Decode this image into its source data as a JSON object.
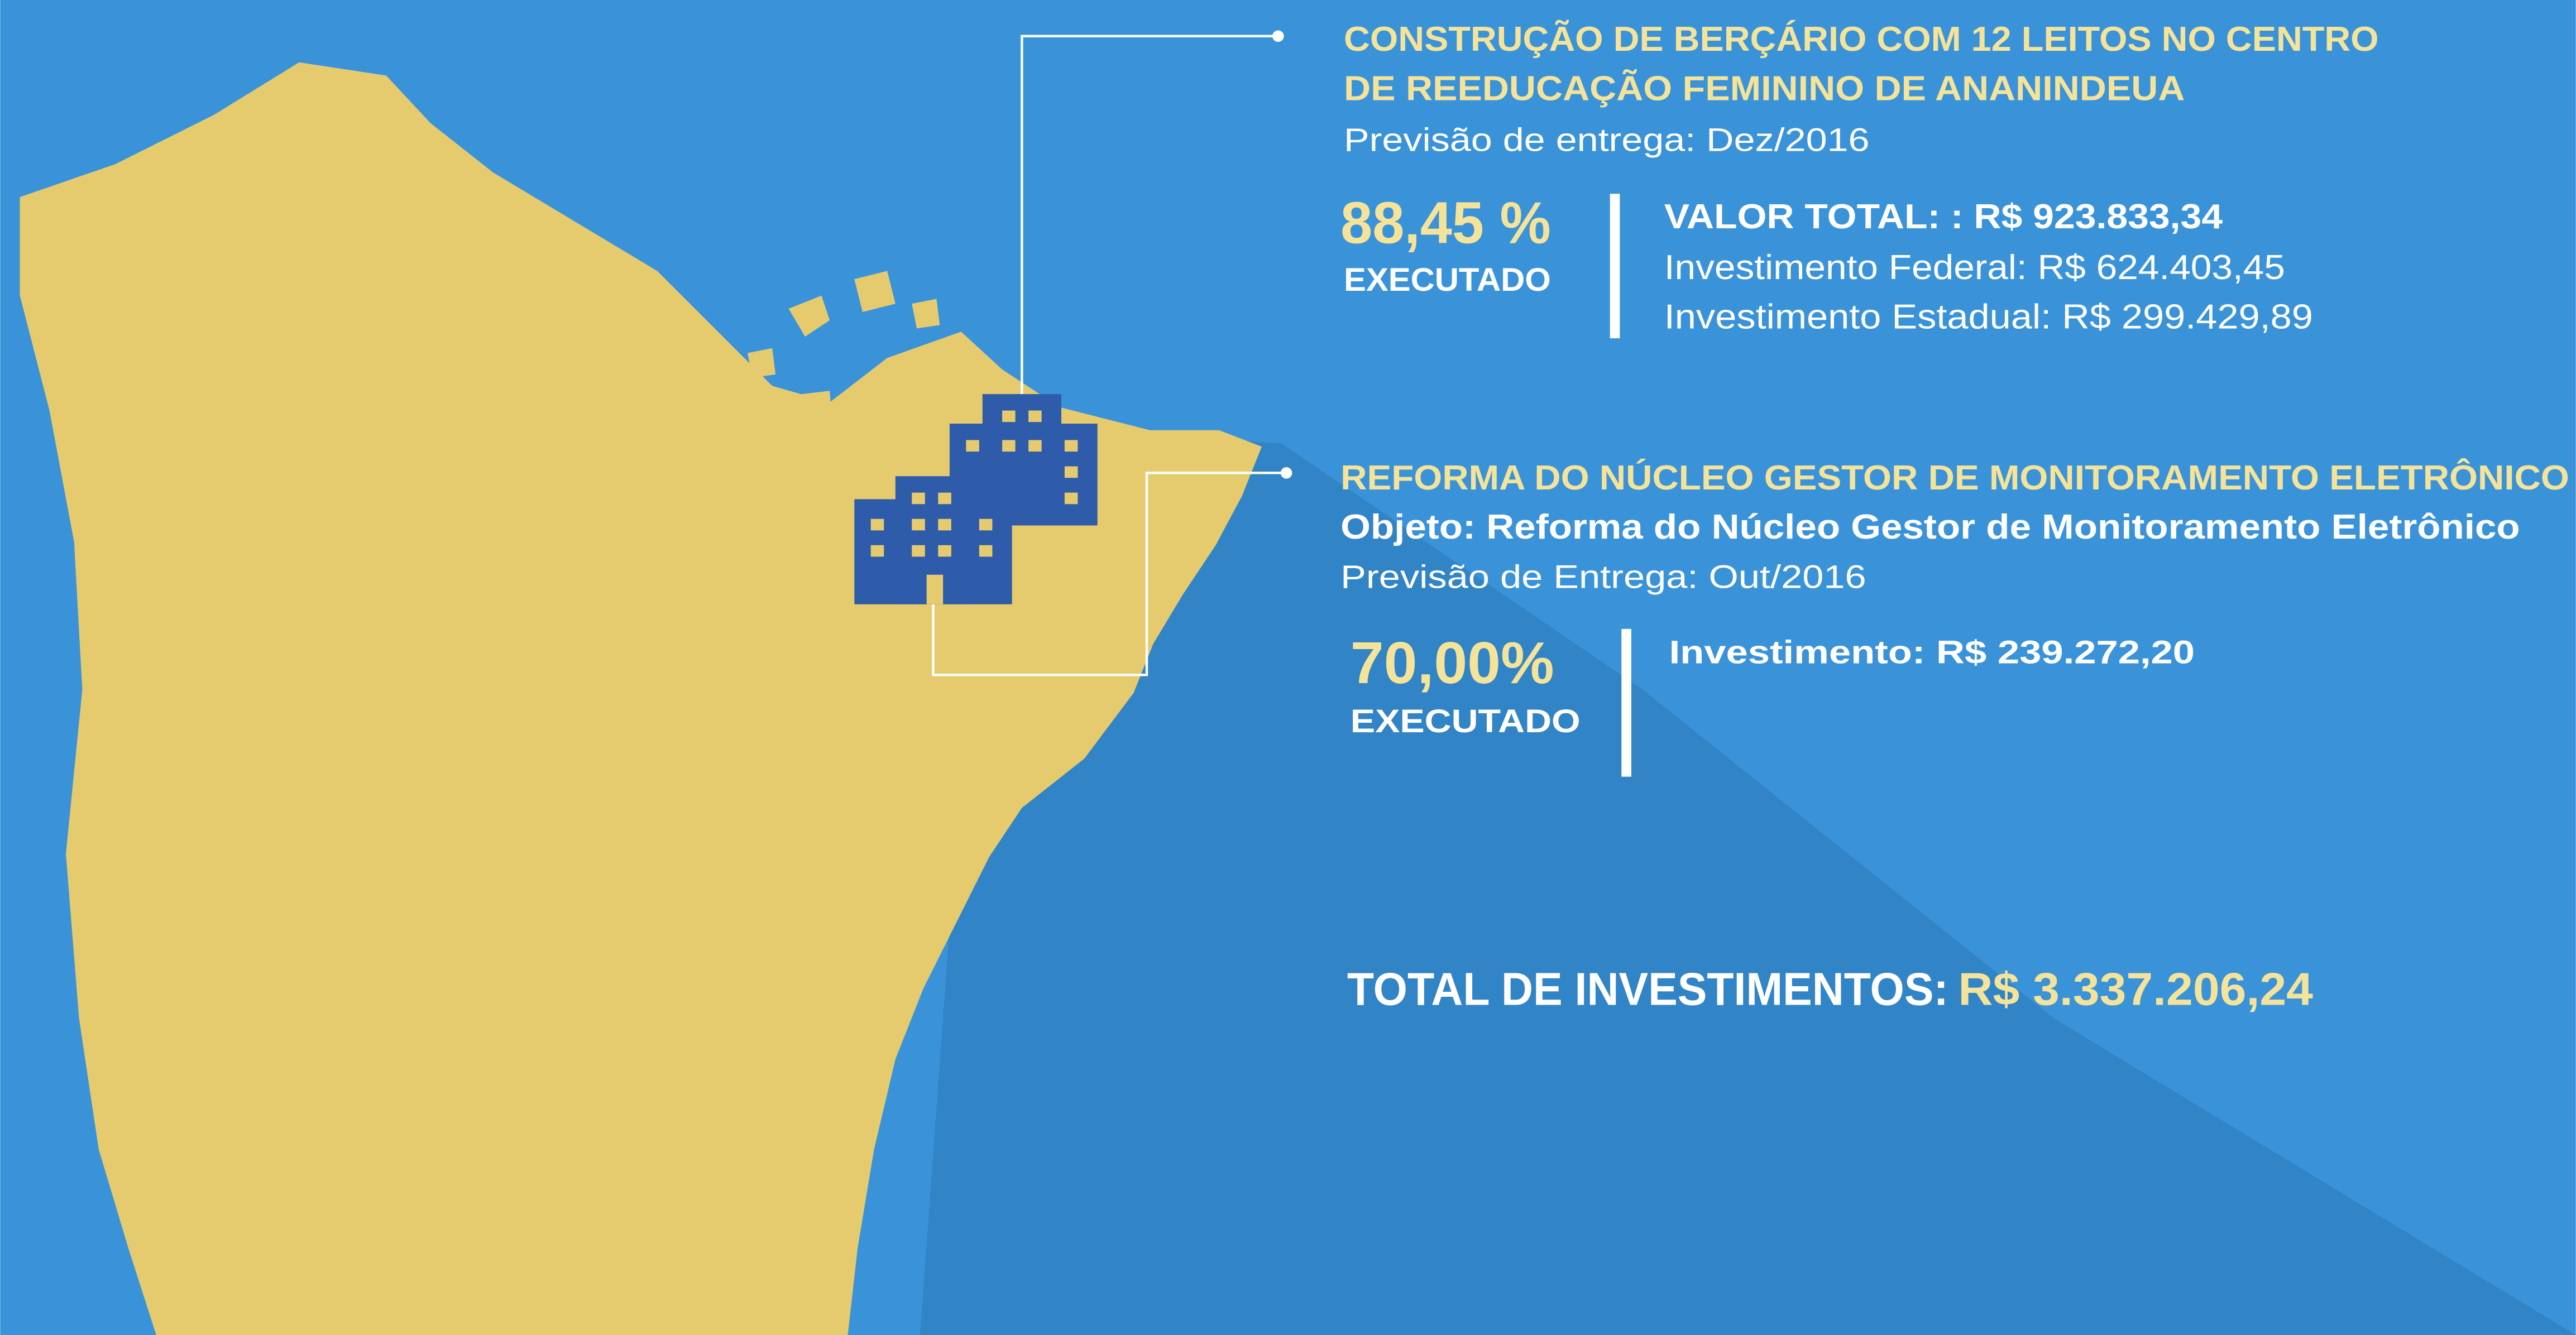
{
  "projects": [
    {
      "title": [
        "CONSTRUÇÃO DE BERÇÁRIO COM 12 LEITOS NO CENTRO",
        "DE REEDUCAÇÃO FEMININO DE ANANINDEUA"
      ],
      "delivery": "Previsão de entrega: Dez/2016",
      "percent": "88,45 %",
      "status": "EXECUTADO",
      "total": "VALOR TOTAL: : R$ 923.833,34",
      "details": [
        "Investimento Federal: R$ 624.403,45",
        "Investimento Estadual: R$  299.429,89"
      ]
    },
    {
      "title": [
        "REFORMA DO NÚCLEO GESTOR DE MONITORAMENTO ELETRÔNICO"
      ],
      "object": "Objeto: Reforma do Núcleo Gestor de Monitoramento Eletrônico",
      "delivery": "Previsão de Entrega: Out/2016",
      "percent": "70,00%",
      "status": "EXECUTADO",
      "total": "Investimento: R$ 239.272,20"
    }
  ],
  "summary": {
    "label": "TOTAL DE INVESTIMENTOS:",
    "value": "R$ 3.337.206,24"
  }
}
